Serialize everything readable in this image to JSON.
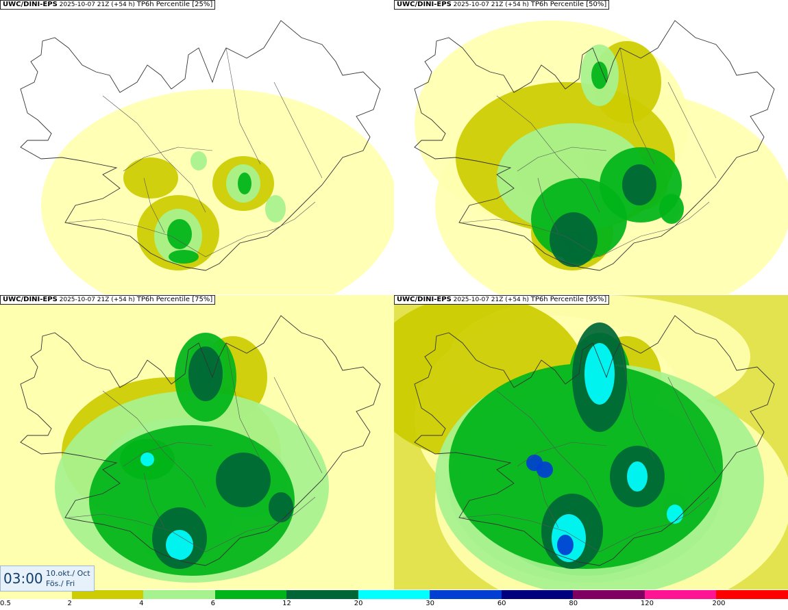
{
  "panels": [
    {
      "model": "UWC/DINI-EPS",
      "run": "2025-10-07 21Z (+54 h)",
      "field": "TP6h Percentile [25%]",
      "level": 1
    },
    {
      "model": "UWC/DINI-EPS",
      "run": "2025-10-07 21Z (+54 h)",
      "field": "TP6h Percentile [50%]",
      "level": 2
    },
    {
      "model": "UWC/DINI-EPS",
      "run": "2025-10-07 21Z (+54 h)",
      "field": "TP6h Percentile [75%]",
      "level": 3
    },
    {
      "model": "UWC/DINI-EPS",
      "run": "2025-10-07 21Z (+54 h)",
      "field": "TP6h Percentile [95%]",
      "level": 4
    }
  ],
  "valid": {
    "time": "03:00",
    "date_is_en": "10.okt./ Oct",
    "day_is_en": "Fös./ Fri"
  },
  "legend": {
    "colors": [
      "#ffffb0",
      "#cccc00",
      "#a6f28f",
      "#00b419",
      "#006637",
      "#00ffff",
      "#003fd1",
      "#00007f",
      "#7f0060",
      "#ff1493",
      "#ff0000"
    ],
    "labels": [
      "0.5",
      "2",
      "4",
      "6",
      "12",
      "20",
      "30",
      "60",
      "80",
      "120",
      "200"
    ]
  }
}
